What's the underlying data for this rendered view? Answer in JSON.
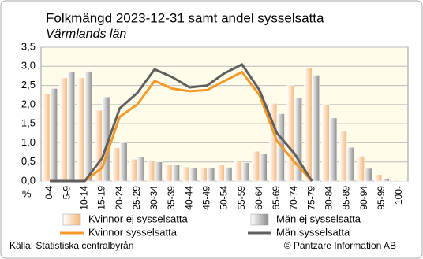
{
  "chart_data": {
    "type": "bar",
    "title": "Folkmängd 2023-12-31 samt andel sysselsatta",
    "subtitle": "Värmlands län",
    "y_label": "%",
    "source": "Källa: Statistiska centralbyrån",
    "credit": "© Pantzare Information AB",
    "categories": [
      "0-4",
      "5-9",
      "10-14",
      "15-19",
      "20-24",
      "25-29",
      "30-34",
      "35-39",
      "40-44",
      "45-49",
      "50-54",
      "55-59",
      "60-64",
      "65-69",
      "70-74",
      "75-79",
      "80-84",
      "85-89",
      "90-94",
      "95-99",
      "100-"
    ],
    "ylim": [
      0,
      3.5
    ],
    "yticks": [
      {
        "value": 0,
        "label": "0,0"
      },
      {
        "value": 0.5,
        "label": "0,5"
      },
      {
        "value": 1,
        "label": "1,0"
      },
      {
        "value": 1.5,
        "label": "1,5"
      },
      {
        "value": 2,
        "label": "2,0"
      },
      {
        "value": 2.5,
        "label": "2,5"
      },
      {
        "value": 3,
        "label": "3,0"
      },
      {
        "value": 3.5,
        "label": "3,5"
      }
    ],
    "grid": true,
    "series": [
      {
        "name": "Kvinnor ej sysselsatta",
        "type": "bar",
        "color": "#f5b77a",
        "values": [
          2.28,
          2.7,
          2.7,
          1.85,
          0.87,
          0.57,
          0.53,
          0.43,
          0.37,
          0.35,
          0.43,
          0.53,
          0.78,
          2.03,
          2.5,
          2.96,
          2.0,
          1.3,
          0.65,
          0.17,
          0.02
        ]
      },
      {
        "name": "Män ej sysselsatta",
        "type": "bar",
        "color": "#8c8c8c",
        "values": [
          2.42,
          2.85,
          2.87,
          2.2,
          1.0,
          0.64,
          0.5,
          0.42,
          0.35,
          0.34,
          0.36,
          0.48,
          0.72,
          1.76,
          2.18,
          2.77,
          1.65,
          0.88,
          0.33,
          0.07,
          0.01
        ]
      },
      {
        "name": "Kvinnor sysselsatta",
        "type": "line",
        "color": "#f39a2b",
        "values": [
          0,
          0,
          0,
          0.35,
          1.68,
          2.0,
          2.62,
          2.42,
          2.35,
          2.38,
          2.62,
          2.85,
          2.25,
          1.05,
          0.5,
          0,
          null,
          null,
          null,
          null,
          null
        ]
      },
      {
        "name": "Män sysselsatta",
        "type": "line",
        "color": "#5f5f5f",
        "values": [
          0,
          0,
          0,
          0.6,
          1.9,
          2.3,
          2.92,
          2.72,
          2.45,
          2.5,
          2.82,
          3.05,
          2.38,
          1.25,
          0.72,
          0,
          null,
          null,
          null,
          null,
          null
        ]
      }
    ]
  }
}
